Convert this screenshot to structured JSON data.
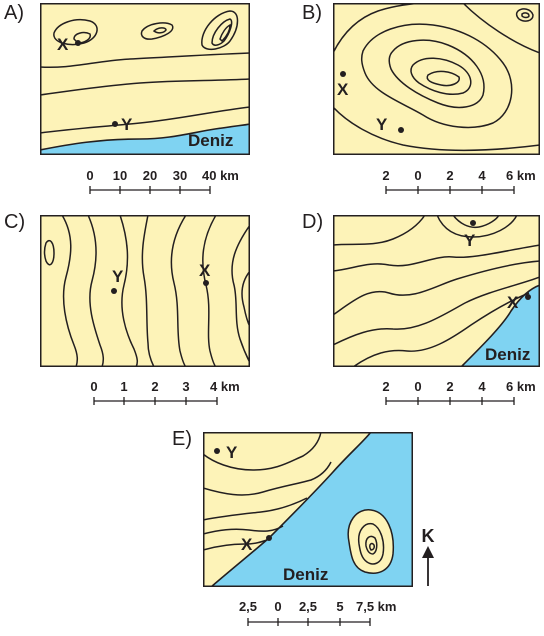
{
  "panels": {
    "a": {
      "letter": "A)",
      "point_x": "X",
      "point_y": "Y",
      "sea": "Deniz",
      "scale": [
        "0",
        "10",
        "20",
        "30",
        "40 km"
      ]
    },
    "b": {
      "letter": "B)",
      "point_x": "X",
      "point_y": "Y",
      "scale": [
        "2",
        "0",
        "2",
        "4",
        "6 km"
      ]
    },
    "c": {
      "letter": "C)",
      "point_x": "X",
      "point_y": "Y",
      "scale": [
        "0",
        "1",
        "2",
        "3",
        "4 km"
      ]
    },
    "d": {
      "letter": "D)",
      "point_x": "X",
      "point_y": "Y",
      "sea": "Deniz",
      "scale": [
        "2",
        "0",
        "2",
        "4",
        "6 km"
      ]
    },
    "e": {
      "letter": "E)",
      "point_x": "X",
      "point_y": "Y",
      "sea": "Deniz",
      "scale": [
        "2,5",
        "0",
        "2,5",
        "5",
        "7,5 km"
      ]
    }
  },
  "north_arrow": {
    "label": "K"
  },
  "colors": {
    "land": "#fdf3b8",
    "sea": "#7fd3f2",
    "line": "#231f20"
  }
}
